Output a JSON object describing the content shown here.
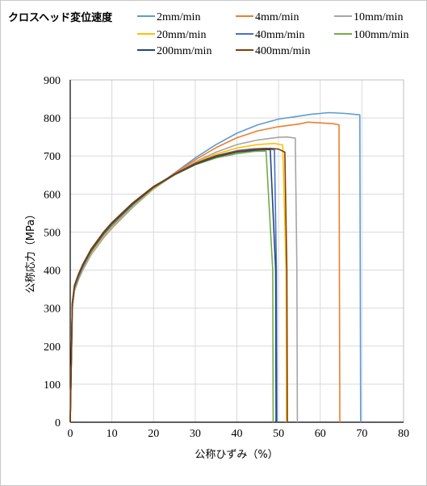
{
  "chart_data": {
    "type": "line",
    "title": "",
    "legend_title": "クロスヘッド変位速度",
    "legend_position": "top",
    "xlabel": "公称ひずみ（%）",
    "ylabel": "公称応力（MPa）",
    "xlim": [
      0,
      80
    ],
    "ylim": [
      0,
      900
    ],
    "x_ticks": [
      "0",
      "10",
      "20",
      "30",
      "40",
      "50",
      "60",
      "70",
      "80"
    ],
    "y_ticks": [
      "0",
      "100",
      "200",
      "300",
      "400",
      "500",
      "600",
      "700",
      "800",
      "900"
    ],
    "grid": true,
    "series": [
      {
        "name": "2mm/min",
        "color": "#5b9bd5",
        "x": [
          0,
          0.5,
          1,
          2,
          3,
          5,
          8,
          10,
          15,
          20,
          25,
          30,
          35,
          40,
          45,
          50,
          55,
          58,
          60,
          62,
          66,
          69.5,
          69.6,
          69.7
        ],
        "y": [
          0,
          300,
          345,
          375,
          400,
          440,
          485,
          510,
          565,
          615,
          655,
          695,
          730,
          760,
          782,
          797,
          805,
          810,
          812,
          814,
          812,
          808,
          400,
          0
        ]
      },
      {
        "name": "4mm/min",
        "color": "#ed7d31",
        "x": [
          0,
          0.5,
          1,
          2,
          3,
          5,
          8,
          10,
          15,
          20,
          25,
          30,
          35,
          40,
          45,
          50,
          55,
          57,
          60,
          63,
          64.5,
          64.6,
          64.7
        ],
        "y": [
          0,
          300,
          347,
          378,
          403,
          443,
          488,
          512,
          567,
          615,
          654,
          690,
          722,
          748,
          766,
          777,
          784,
          789,
          787,
          785,
          782,
          400,
          0
        ]
      },
      {
        "name": "10mm/min",
        "color": "#a5a5a5",
        "x": [
          0,
          0.5,
          1,
          2,
          3,
          5,
          8,
          10,
          15,
          20,
          25,
          30,
          35,
          40,
          45,
          50,
          52,
          54,
          54.4,
          54.5
        ],
        "y": [
          0,
          300,
          345,
          375,
          400,
          440,
          485,
          510,
          565,
          613,
          651,
          685,
          710,
          730,
          742,
          749,
          750,
          747,
          400,
          0
        ]
      },
      {
        "name": "20mm/min",
        "color": "#ffc000",
        "x": [
          0,
          0.5,
          1,
          2,
          3,
          5,
          8,
          10,
          15,
          20,
          25,
          30,
          35,
          40,
          45,
          49,
          51,
          51.8,
          51.9
        ],
        "y": [
          0,
          305,
          350,
          380,
          405,
          445,
          490,
          515,
          569,
          615,
          651,
          683,
          705,
          721,
          730,
          733,
          729,
          400,
          0
        ]
      },
      {
        "name": "40mm/min",
        "color": "#4472c4",
        "x": [
          0,
          0.5,
          1,
          2,
          3,
          5,
          8,
          10,
          15,
          20,
          25,
          30,
          35,
          40,
          44,
          47,
          49,
          49.5,
          49.6
        ],
        "y": [
          0,
          308,
          352,
          382,
          407,
          448,
          493,
          518,
          571,
          617,
          652,
          681,
          701,
          714,
          719,
          720,
          716,
          400,
          0
        ]
      },
      {
        "name": "100mm/min",
        "color": "#70ad47",
        "x": [
          0,
          0.5,
          1,
          2,
          3,
          5,
          8,
          10,
          15,
          20,
          25,
          30,
          35,
          40,
          44,
          47,
          48.6,
          48.7
        ],
        "y": [
          0,
          310,
          355,
          385,
          410,
          450,
          495,
          520,
          572,
          617,
          650,
          677,
          695,
          706,
          712,
          713,
          400,
          0
        ]
      },
      {
        "name": "200mm/min",
        "color": "#264478",
        "x": [
          0,
          0.5,
          1,
          2,
          3,
          5,
          8,
          10,
          15,
          20,
          25,
          30,
          35,
          40,
          45,
          48,
          49.3,
          49.4
        ],
        "y": [
          0,
          312,
          357,
          387,
          412,
          452,
          497,
          522,
          574,
          618,
          651,
          678,
          698,
          710,
          716,
          717,
          400,
          0
        ]
      },
      {
        "name": "400mm/min",
        "color": "#843c0c",
        "x": [
          0,
          0.5,
          1,
          2,
          3,
          5,
          8,
          10,
          15,
          20,
          25,
          30,
          35,
          40,
          45,
          48,
          50,
          51.5,
          52,
          52.1
        ],
        "y": [
          0,
          315,
          360,
          390,
          415,
          455,
          500,
          525,
          577,
          620,
          652,
          680,
          700,
          712,
          718,
          720,
          718,
          710,
          400,
          0
        ]
      }
    ]
  }
}
